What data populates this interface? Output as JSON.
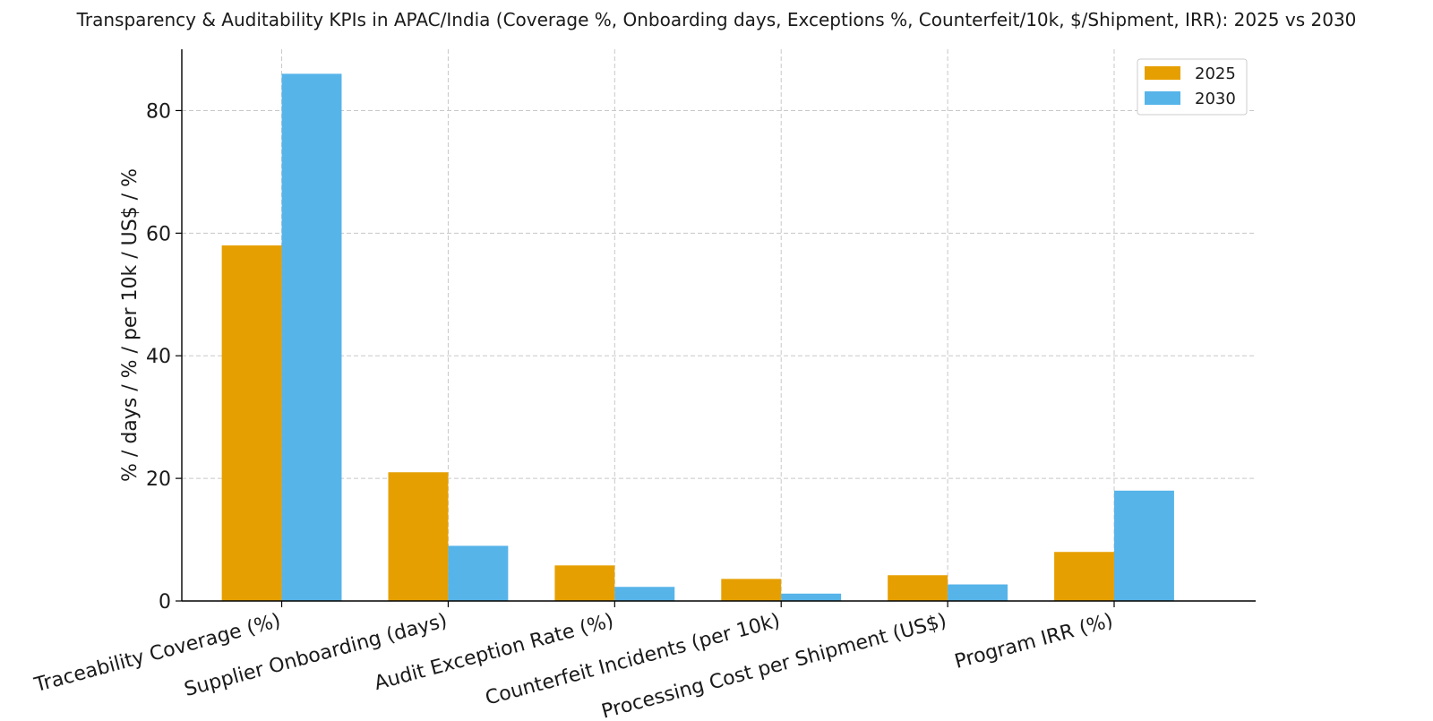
{
  "chart_data": {
    "type": "bar",
    "title": "Transparency & Auditability KPIs in APAC/India (Coverage %, Onboarding days, Exceptions %, Counterfeit/10k, $/Shipment, IRR): 2025 vs 2030",
    "xlabel": "",
    "ylabel": "% / days / % / per 10k / US$ / %",
    "categories": [
      "Traceability Coverage (%)",
      "Supplier Onboarding (days)",
      "Audit Exception Rate (%)",
      "Counterfeit Incidents (per 10k)",
      "Processing Cost per Shipment (US$)",
      "Program IRR (%)"
    ],
    "series": [
      {
        "name": "2025",
        "color": "#E69F00",
        "values": [
          58,
          21,
          5.8,
          3.6,
          4.2,
          8
        ]
      },
      {
        "name": "2030",
        "color": "#56B4E9",
        "values": [
          86,
          9,
          2.3,
          1.2,
          2.7,
          18
        ]
      }
    ],
    "ylim": [
      0,
      90
    ],
    "yticks": [
      0,
      20,
      40,
      60,
      80
    ],
    "grid": true,
    "legend": "top-right"
  }
}
